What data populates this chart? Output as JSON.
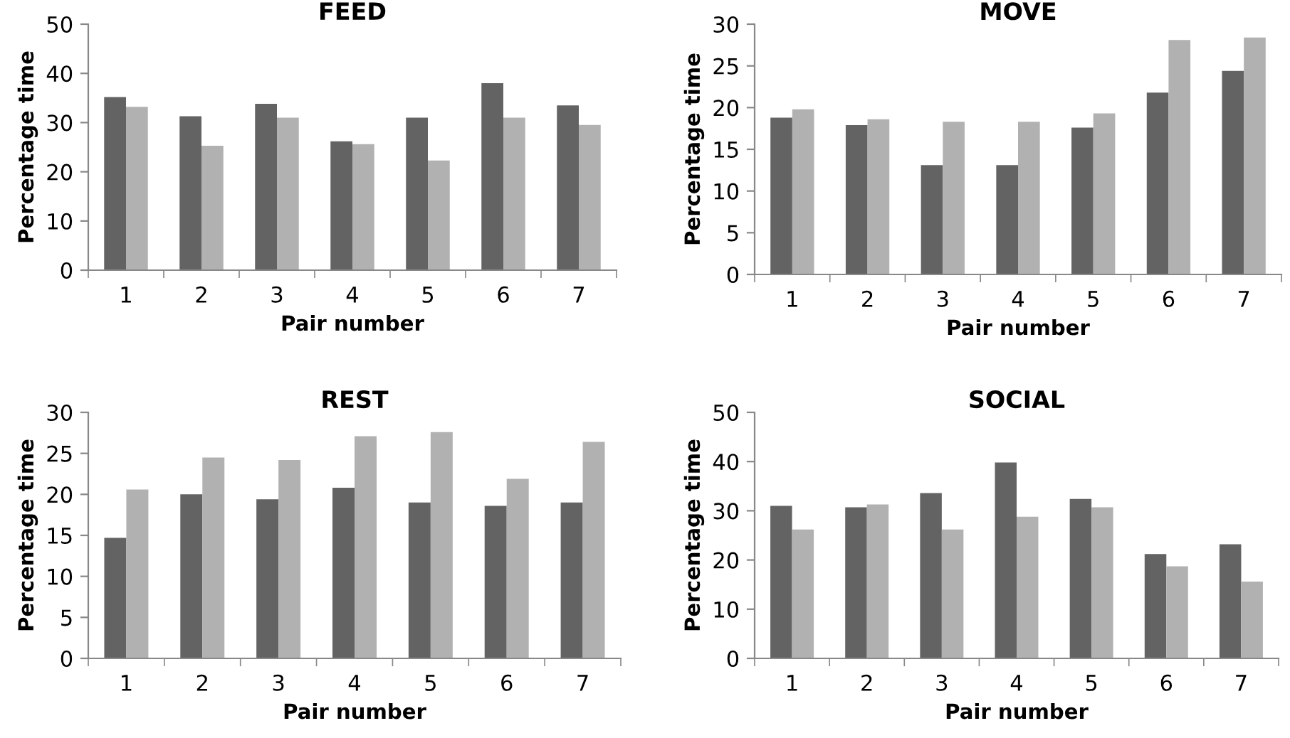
{
  "chart_data": [
    {
      "type": "bar",
      "title": "FEED",
      "xlabel": "Pair number",
      "ylabel": "Percentage time",
      "categories": [
        "1",
        "2",
        "3",
        "4",
        "5",
        "6",
        "7"
      ],
      "ylim": [
        0,
        50
      ],
      "yticks": [
        0,
        10,
        20,
        30,
        40,
        50
      ],
      "legend": false,
      "grid": false,
      "series": [
        {
          "color": "#636363",
          "values": [
            35.2,
            31.3,
            33.8,
            26.2,
            31,
            38,
            33.5
          ]
        },
        {
          "color": "#b1b1b1",
          "values": [
            33.2,
            25.3,
            31,
            25.6,
            22.3,
            31,
            29.5
          ]
        }
      ]
    },
    {
      "type": "bar",
      "title": "MOVE",
      "xlabel": "Pair number",
      "ylabel": "Percentage time",
      "categories": [
        "1",
        "2",
        "3",
        "4",
        "5",
        "6",
        "7"
      ],
      "ylim": [
        0,
        30
      ],
      "yticks": [
        0,
        5,
        10,
        15,
        20,
        25,
        30
      ],
      "legend": false,
      "grid": false,
      "series": [
        {
          "color": "#636363",
          "values": [
            18.8,
            17.9,
            13.1,
            13.1,
            17.6,
            21.8,
            24.4
          ]
        },
        {
          "color": "#b1b1b1",
          "values": [
            19.8,
            18.6,
            18.3,
            18.3,
            19.3,
            28.1,
            28.4
          ]
        }
      ]
    },
    {
      "type": "bar",
      "title": "REST",
      "xlabel": "Pair number",
      "ylabel": "Percentage time",
      "categories": [
        "1",
        "2",
        "3",
        "4",
        "5",
        "6",
        "7"
      ],
      "ylim": [
        0,
        30
      ],
      "yticks": [
        0,
        5,
        10,
        15,
        20,
        25,
        30
      ],
      "legend": false,
      "grid": false,
      "series": [
        {
          "color": "#636363",
          "values": [
            14.7,
            20,
            19.4,
            20.8,
            19,
            18.6,
            19
          ]
        },
        {
          "color": "#b1b1b1",
          "values": [
            20.6,
            24.5,
            24.2,
            27.1,
            27.6,
            21.9,
            26.4
          ]
        }
      ]
    },
    {
      "type": "bar",
      "title": "SOCIAL",
      "xlabel": "Pair number",
      "ylabel": "Percentage time",
      "categories": [
        "1",
        "2",
        "3",
        "4",
        "5",
        "6",
        "7"
      ],
      "ylim": [
        0,
        50
      ],
      "yticks": [
        0,
        10,
        20,
        30,
        40,
        50
      ],
      "legend": false,
      "grid": false,
      "series": [
        {
          "color": "#636363",
          "values": [
            31,
            30.7,
            33.6,
            39.8,
            32.4,
            21.2,
            23.2
          ]
        },
        {
          "color": "#b1b1b1",
          "values": [
            26.2,
            31.3,
            26.2,
            28.8,
            30.7,
            18.7,
            15.6
          ]
        }
      ]
    }
  ]
}
